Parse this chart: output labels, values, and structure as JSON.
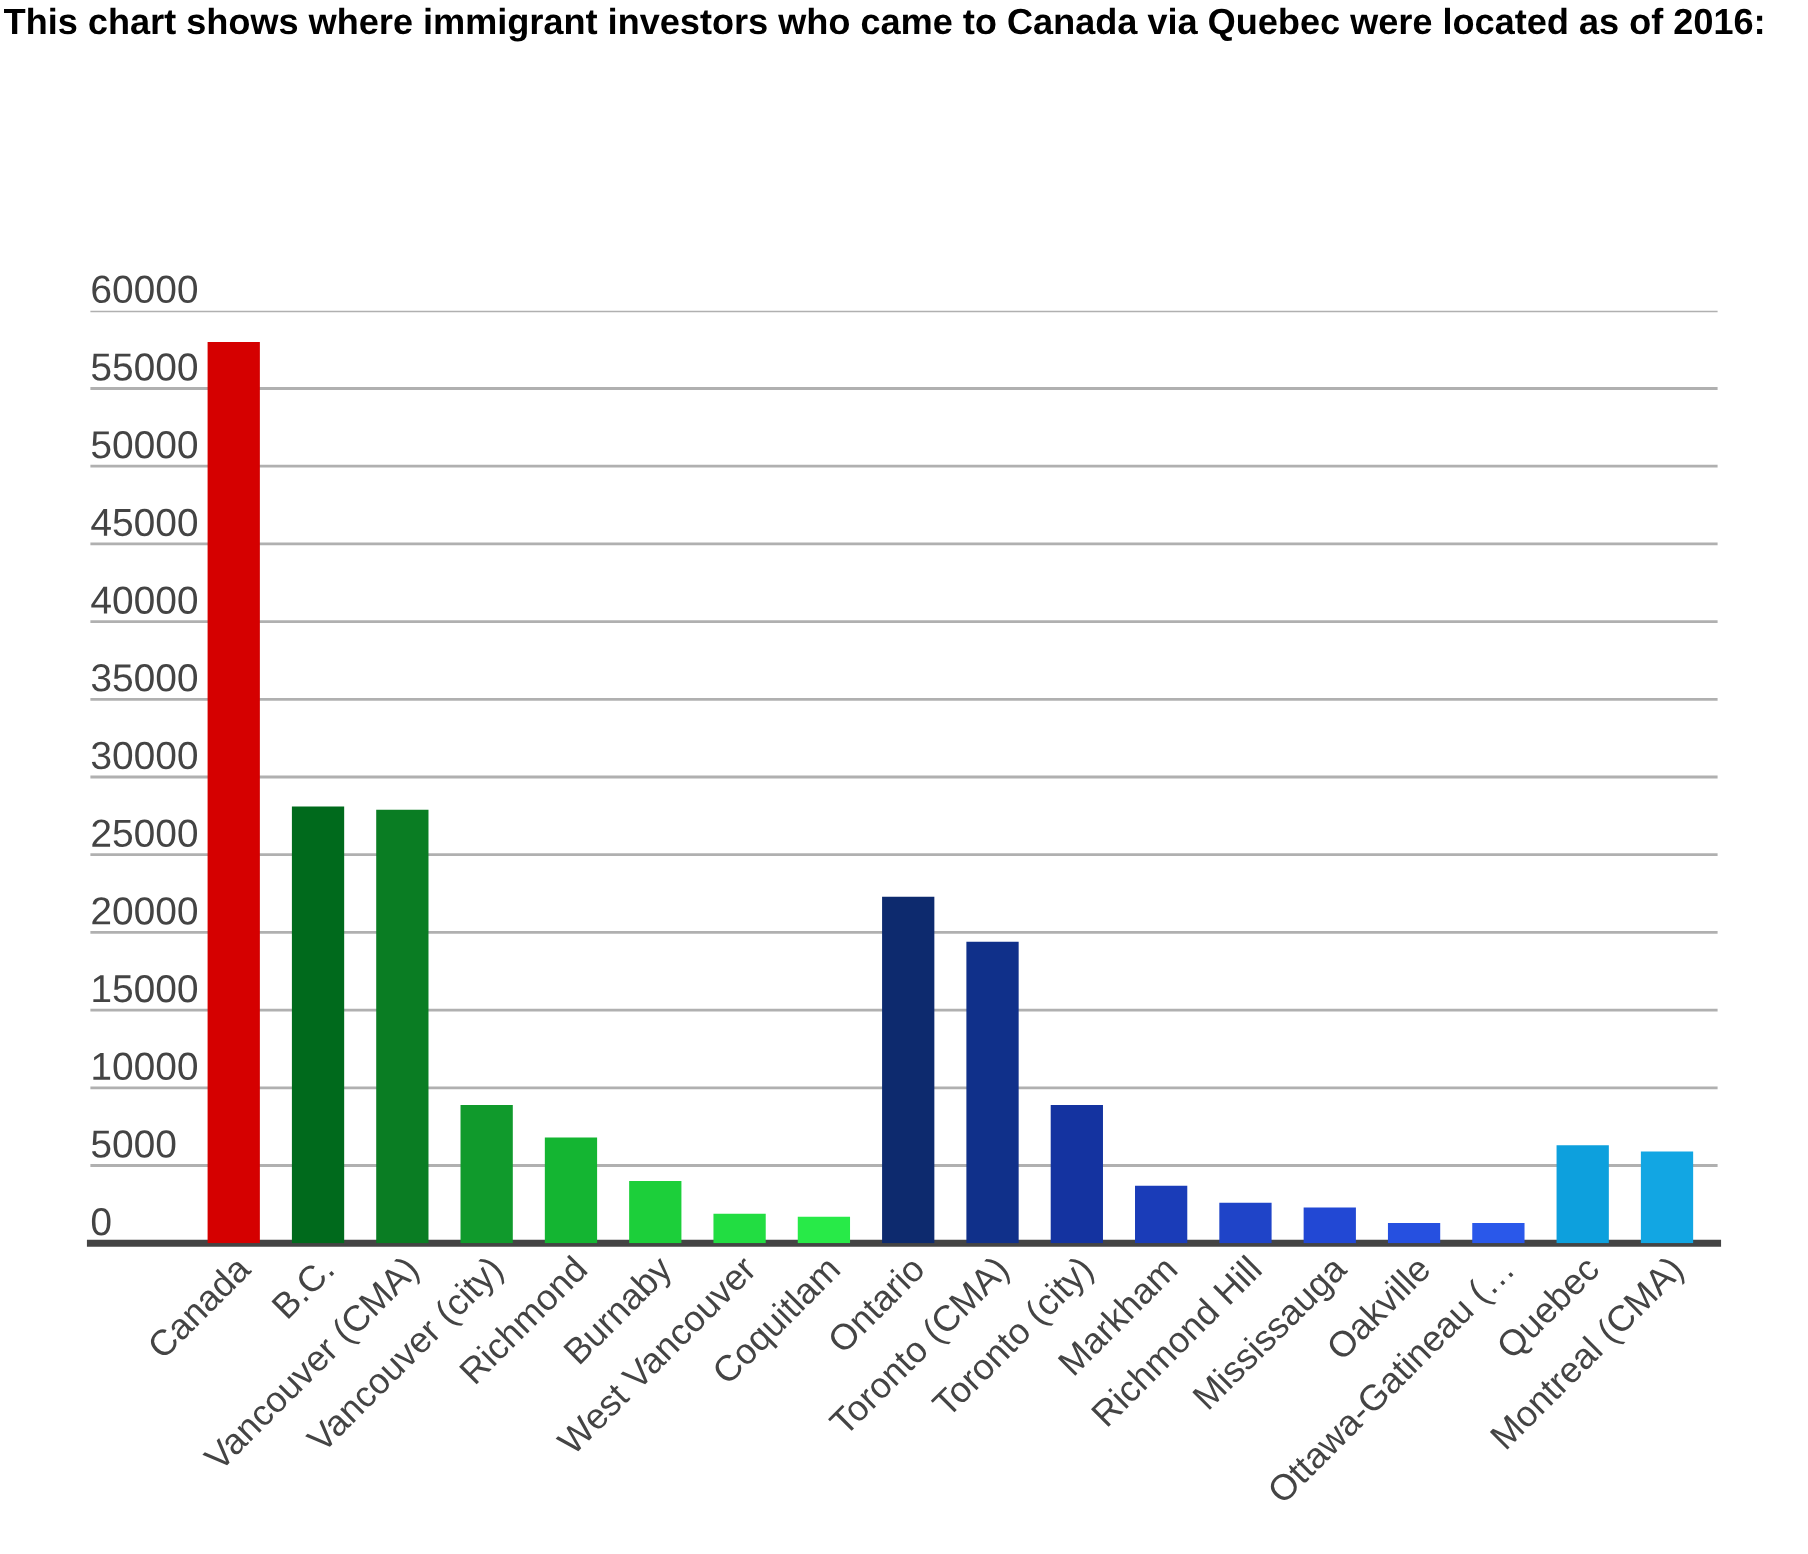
{
  "chart_data": {
    "type": "bar",
    "title": "This chart shows where immigrant investors who came to Canada via Quebec were located as of 2016:",
    "categories": [
      "Canada",
      "B.C.",
      "Vancouver (CMA)",
      "Vancouver (city)",
      "Richmond",
      "Burnaby",
      "West Vancouver",
      "Coquitlam",
      "Ontario",
      "Toronto (CMA)",
      "Toronto (city)",
      "Markham",
      "Richmond Hill",
      "Mississauga",
      "Oakville",
      "Ottawa-Gatineau (…",
      "Quebec",
      "Montreal (CMA)"
    ],
    "values": [
      58000,
      28100,
      27900,
      8900,
      6800,
      4000,
      1900,
      1700,
      22300,
      19400,
      8900,
      3700,
      2600,
      2300,
      1300,
      1300,
      6300,
      5900
    ],
    "colors": [
      "#d50000",
      "#006a1c",
      "#0a7d23",
      "#109a2c",
      "#14b532",
      "#1ccf3a",
      "#22dd42",
      "#28ea48",
      "#0d2a6e",
      "#10308a",
      "#1433a0",
      "#1a3cb8",
      "#1f44c8",
      "#2248d4",
      "#2650e0",
      "#2a58ea",
      "#0da0dd",
      "#12a6e3"
    ],
    "ylim": [
      0,
      60000
    ],
    "yticks": [
      0,
      5000,
      10000,
      15000,
      20000,
      25000,
      30000,
      35000,
      40000,
      45000,
      50000,
      55000,
      60000
    ],
    "grid": "y"
  }
}
